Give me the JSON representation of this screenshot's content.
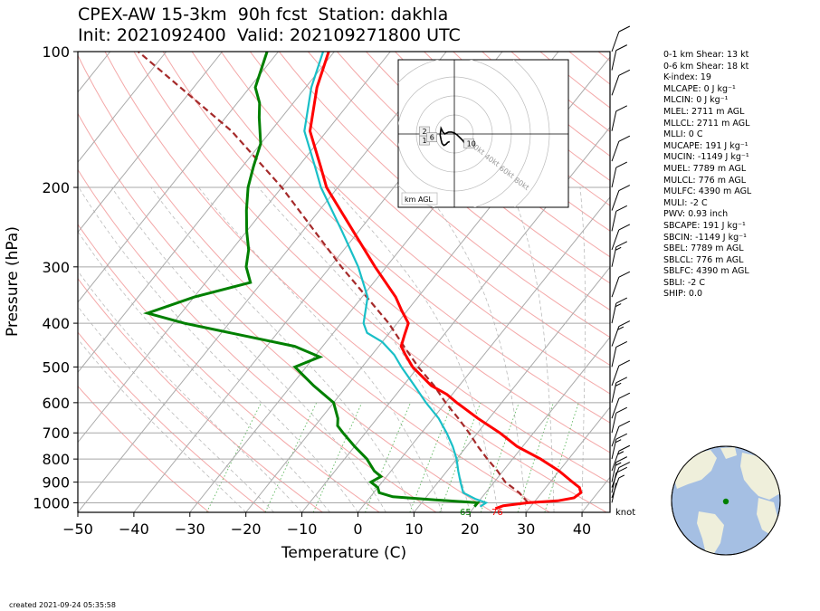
{
  "title_line1": "CPEX-AW 15-3km  90h fcst  Station: dakhla",
  "title_line2": "Init: 2021092400  Valid: 202109271800 UTC",
  "created": "created 2021-09-24 05:35:58",
  "stats": [
    "0-1 km Shear: 13 kt",
    "0-6 km Shear: 18 kt",
    "K-index: 19",
    "MLCAPE: 0 J kg⁻¹",
    "MLCIN: 0 J kg⁻¹",
    "MLEL: 2711 m AGL",
    "MLLCL: 2711 m AGL",
    "MLLI: 0 C",
    "MUCAPE: 191 J kg⁻¹",
    "MUCIN: -1149 J kg⁻¹",
    "MUEL: 7789 m AGL",
    "MULCL: 776 m AGL",
    "MULFC: 4390 m AGL",
    "MULI: -2 C",
    "PWV: 0.93 inch",
    "SBCAPE: 191 J kg⁻¹",
    "SBCIN: -1149 J kg⁻¹",
    "SBEL: 7789 m AGL",
    "SBLCL: 776 m AGL",
    "SBLFC: 4390 m AGL",
    "SBLI: -2 C",
    "SHIP: 0.0"
  ],
  "hodograph": {
    "box_label": "km AGL",
    "ring_labels": [
      "20kt",
      "40kt",
      "60kt",
      "80kt"
    ],
    "height_labels": [
      "1",
      "2",
      "6",
      "10"
    ],
    "points_kt": [
      [
        17,
        -7
      ],
      [
        16,
        -8
      ],
      [
        15,
        -10
      ],
      [
        14,
        -11
      ],
      [
        13,
        -11
      ],
      [
        11,
        -10
      ],
      [
        9,
        -7
      ],
      [
        6,
        -4
      ],
      [
        3,
        -1
      ],
      [
        0,
        1
      ],
      [
        -3,
        2
      ],
      [
        -6,
        2
      ],
      [
        -8,
        1
      ],
      [
        -10,
        0
      ],
      [
        -12,
        2
      ],
      [
        -13,
        4
      ],
      [
        -14,
        6
      ],
      [
        -15,
        -1
      ],
      [
        -14,
        -6
      ],
      [
        -13,
        -10
      ],
      [
        -11,
        -12
      ],
      [
        -9,
        -11
      ],
      [
        -7,
        -9
      ],
      [
        -5,
        -8
      ]
    ],
    "label_positions_kt": [
      [
        -13,
        -3
      ],
      [
        -13,
        0
      ],
      [
        -10,
        -2
      ],
      [
        5,
        -4
      ]
    ]
  },
  "chart_data": {
    "type": "skew-t",
    "xlabel": "Temperature (C)",
    "ylabel": "Pressure (hPa)",
    "xlim": [
      -50,
      45
    ],
    "ylim": [
      1050,
      100
    ],
    "x_ticks": [
      -50,
      -40,
      -30,
      -20,
      -10,
      0,
      10,
      20,
      30,
      40
    ],
    "x_tick_labels": [
      "−50",
      "−40",
      "−30",
      "−20",
      "−10",
      "0",
      "10",
      "20",
      "30",
      "40"
    ],
    "y_ticks": [
      1000,
      900,
      800,
      700,
      600,
      500,
      400,
      300,
      200,
      100
    ],
    "surface_temp_label": "76",
    "surface_dewpoint_label": "65",
    "barb_unit_label": "knot",
    "temperature": [
      [
        1030,
        24
      ],
      [
        1015,
        25
      ],
      [
        1000,
        29
      ],
      [
        990,
        34
      ],
      [
        975,
        36.5
      ],
      [
        950,
        37
      ],
      [
        925,
        36
      ],
      [
        900,
        34
      ],
      [
        850,
        30
      ],
      [
        800,
        25
      ],
      [
        750,
        19
      ],
      [
        700,
        14
      ],
      [
        650,
        8
      ],
      [
        600,
        2
      ],
      [
        575,
        -1
      ],
      [
        550,
        -5
      ],
      [
        500,
        -11
      ],
      [
        470,
        -14
      ],
      [
        450,
        -16
      ],
      [
        425,
        -17
      ],
      [
        400,
        -18
      ],
      [
        375,
        -21
      ],
      [
        350,
        -24
      ],
      [
        300,
        -32
      ],
      [
        250,
        -41
      ],
      [
        200,
        -52
      ],
      [
        180,
        -56
      ],
      [
        150,
        -63
      ],
      [
        120,
        -68
      ],
      [
        100,
        -71
      ]
    ],
    "dewpoint": [
      [
        1020,
        20
      ],
      [
        1000,
        20
      ],
      [
        985,
        12
      ],
      [
        970,
        4
      ],
      [
        950,
        1
      ],
      [
        925,
        0
      ],
      [
        900,
        -2
      ],
      [
        875,
        -1
      ],
      [
        850,
        -3
      ],
      [
        800,
        -6
      ],
      [
        750,
        -10
      ],
      [
        700,
        -14
      ],
      [
        675,
        -16
      ],
      [
        650,
        -17
      ],
      [
        600,
        -20
      ],
      [
        550,
        -26
      ],
      [
        500,
        -32
      ],
      [
        475,
        -29
      ],
      [
        450,
        -35
      ],
      [
        400,
        -58
      ],
      [
        380,
        -66
      ],
      [
        350,
        -60
      ],
      [
        325,
        -52
      ],
      [
        300,
        -55
      ],
      [
        275,
        -57
      ],
      [
        250,
        -60
      ],
      [
        225,
        -63
      ],
      [
        200,
        -66
      ],
      [
        180,
        -68
      ],
      [
        160,
        -70
      ],
      [
        140,
        -74
      ],
      [
        130,
        -76
      ],
      [
        120,
        -79
      ],
      [
        100,
        -82
      ]
    ],
    "wetbulb": [
      [
        1020,
        21
      ],
      [
        1000,
        21.5
      ],
      [
        980,
        19
      ],
      [
        950,
        16
      ],
      [
        900,
        14
      ],
      [
        850,
        12
      ],
      [
        800,
        10
      ],
      [
        750,
        7.5
      ],
      [
        700,
        4.5
      ],
      [
        650,
        1
      ],
      [
        600,
        -3.5
      ],
      [
        550,
        -8
      ],
      [
        500,
        -13
      ],
      [
        470,
        -16
      ],
      [
        440,
        -20
      ],
      [
        420,
        -24
      ],
      [
        400,
        -26
      ],
      [
        350,
        -29
      ],
      [
        300,
        -35
      ],
      [
        250,
        -43
      ],
      [
        200,
        -53
      ],
      [
        180,
        -57
      ],
      [
        150,
        -64
      ],
      [
        120,
        -69
      ],
      [
        100,
        -72
      ]
    ],
    "parcel": [
      [
        1000,
        29
      ],
      [
        950,
        26
      ],
      [
        900,
        22
      ],
      [
        850,
        19
      ],
      [
        800,
        15.5
      ],
      [
        750,
        12
      ],
      [
        700,
        8.5
      ],
      [
        650,
        4.5
      ],
      [
        600,
        0
      ],
      [
        550,
        -4.5
      ],
      [
        500,
        -10
      ],
      [
        450,
        -15.5
      ],
      [
        400,
        -21.5
      ],
      [
        300,
        -38
      ],
      [
        200,
        -60
      ],
      [
        150,
        -77
      ],
      [
        100,
        -105
      ]
    ],
    "wind_barbs": [
      [
        1000,
        4
      ],
      [
        975,
        8
      ],
      [
        950,
        10
      ],
      [
        925,
        13
      ],
      [
        900,
        15
      ],
      [
        850,
        15
      ],
      [
        800,
        15
      ],
      [
        750,
        13
      ],
      [
        700,
        11
      ],
      [
        650,
        13
      ],
      [
        600,
        17
      ],
      [
        550,
        12
      ],
      [
        500,
        14
      ],
      [
        450,
        18
      ],
      [
        400,
        15
      ],
      [
        350,
        14
      ],
      [
        300,
        15
      ],
      [
        275,
        13
      ],
      [
        250,
        12
      ],
      [
        225,
        12
      ],
      [
        200,
        13
      ],
      [
        175,
        13
      ],
      [
        150,
        12
      ],
      [
        125,
        12
      ],
      [
        110,
        10
      ],
      [
        100,
        10
      ]
    ]
  }
}
